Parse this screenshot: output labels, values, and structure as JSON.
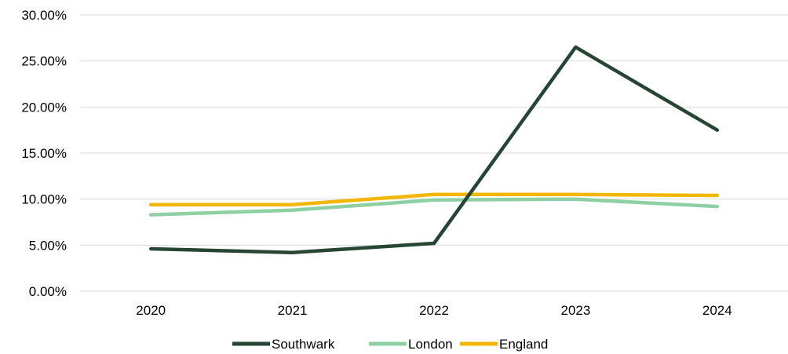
{
  "chart_data": {
    "type": "line",
    "title": "",
    "xlabel": "",
    "ylabel": "",
    "categories": [
      "2020",
      "2021",
      "2022",
      "2023",
      "2024"
    ],
    "ylim": [
      0,
      30
    ],
    "y_ticks": [
      "0.00%",
      "5.00%",
      "10.00%",
      "15.00%",
      "20.00%",
      "25.00%",
      "30.00%"
    ],
    "grid": "horizontal",
    "legend_position": "bottom",
    "series": [
      {
        "name": "Southwark",
        "color": "#264532",
        "values": [
          4.6,
          4.2,
          5.2,
          26.5,
          17.5
        ]
      },
      {
        "name": "London",
        "color": "#8ecfa3",
        "values": [
          8.3,
          8.8,
          9.9,
          10.0,
          9.2
        ]
      },
      {
        "name": "England",
        "color": "#f2b705",
        "values": [
          9.4,
          9.4,
          10.5,
          10.5,
          10.4
        ]
      }
    ]
  }
}
